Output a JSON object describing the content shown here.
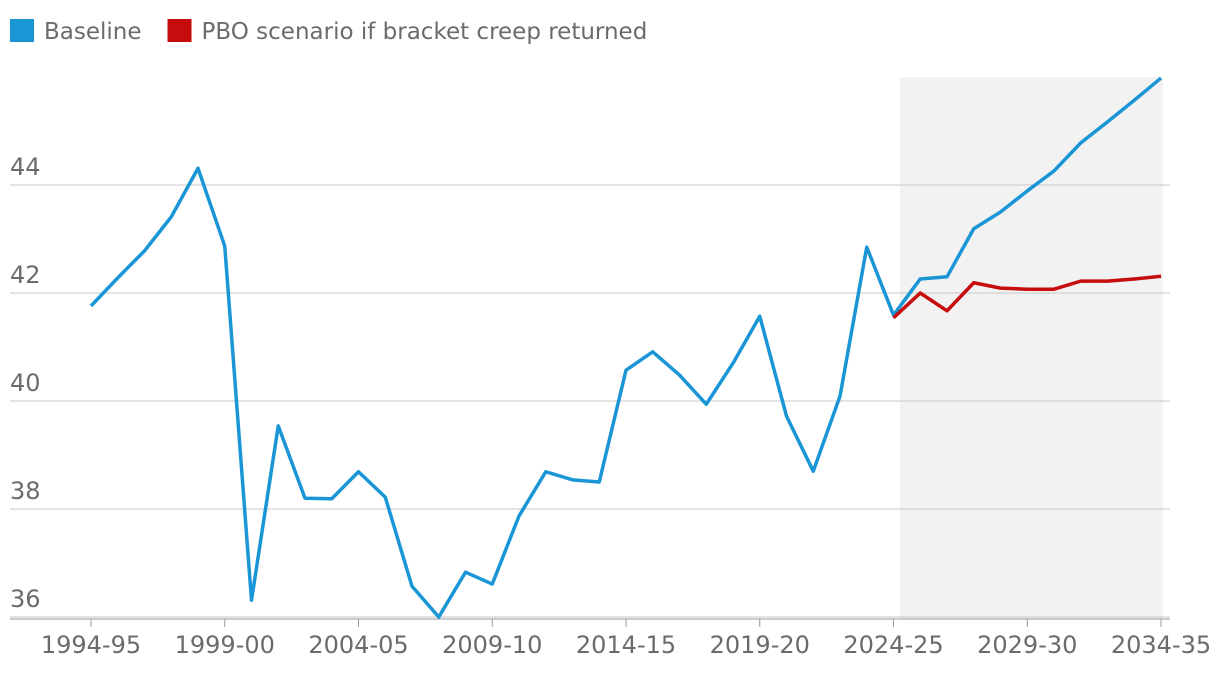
{
  "chart_data": {
    "type": "line",
    "categories": [
      "1994-95",
      null,
      null,
      null,
      null,
      "1999-00",
      null,
      null,
      null,
      null,
      "2004-05",
      null,
      null,
      null,
      null,
      "2009-10",
      null,
      null,
      null,
      null,
      "2014-15",
      null,
      null,
      null,
      null,
      "2019-20",
      null,
      null,
      null,
      null,
      "2024-25",
      null,
      null,
      null,
      null,
      "2029-30",
      null,
      null,
      null,
      null,
      "2034-35"
    ],
    "series": [
      {
        "name": "Baseline",
        "color": "#1a95d6",
        "values": [
          41.76,
          42.28,
          42.78,
          43.41,
          44.31,
          42.87,
          36.31,
          39.54,
          38.2,
          38.19,
          38.69,
          38.22,
          36.57,
          36.0,
          36.83,
          36.61,
          37.87,
          38.69,
          38.54,
          38.5,
          40.57,
          40.91,
          40.48,
          39.94,
          40.7,
          41.57,
          39.72,
          38.7,
          40.09,
          42.85,
          41.59,
          42.26,
          42.3,
          43.19,
          43.5,
          43.89,
          44.26,
          44.78,
          45.17,
          45.57,
          45.98
        ]
      },
      {
        "name": "PBO scenario if bracket creep returned",
        "color": "#c60c0c",
        "values": [
          null,
          null,
          null,
          null,
          null,
          null,
          null,
          null,
          null,
          null,
          null,
          null,
          null,
          null,
          null,
          null,
          null,
          null,
          null,
          null,
          null,
          null,
          null,
          null,
          null,
          null,
          null,
          null,
          null,
          null,
          41.54,
          42.0,
          41.67,
          42.19,
          42.09,
          42.07,
          42.07,
          42.22,
          42.22,
          42.26,
          42.31
        ]
      }
    ],
    "ylim": [
      36,
      46
    ],
    "yticks": [
      36,
      38,
      40,
      42,
      44
    ],
    "grid": true,
    "legend": "top-left"
  }
}
